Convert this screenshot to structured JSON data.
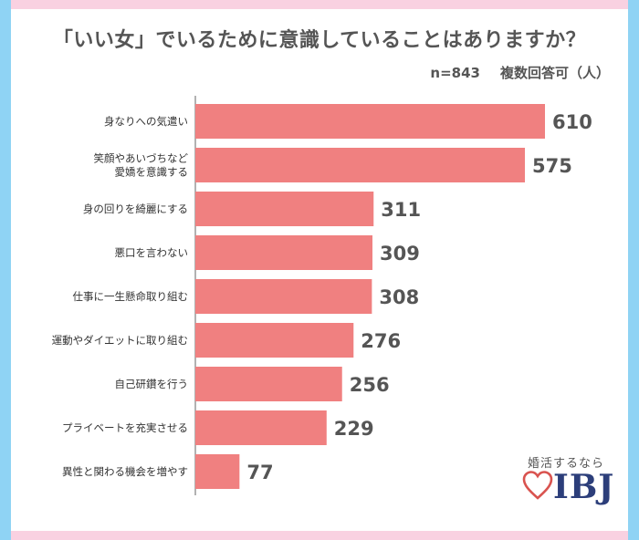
{
  "header": {
    "title": "「いい女」でいるために意識していることはありますか？",
    "sample": "n=843",
    "note": "複数回答可（人）"
  },
  "chart_data": {
    "type": "bar",
    "orientation": "horizontal",
    "categories": [
      "身なりへの気遣い",
      "笑顔やあいづちなど\n愛嬌を意識する",
      "身の回りを綺麗にする",
      "悪口を言わない",
      "仕事に一生懸命取り組む",
      "運動やダイエットに取り組む",
      "自己研鑽を行う",
      "プライベートを充実させる",
      "異性と関わる機会を増やす"
    ],
    "values": [
      610,
      575,
      311,
      309,
      308,
      276,
      256,
      229,
      77
    ],
    "bar_color": "#f08080",
    "grid": false,
    "data_labels": true
  },
  "logo": {
    "tagline": "婚活するなら",
    "brand": "IBJ",
    "colors": {
      "heart": "#d9534f",
      "brand": "#2c3e7a"
    }
  }
}
